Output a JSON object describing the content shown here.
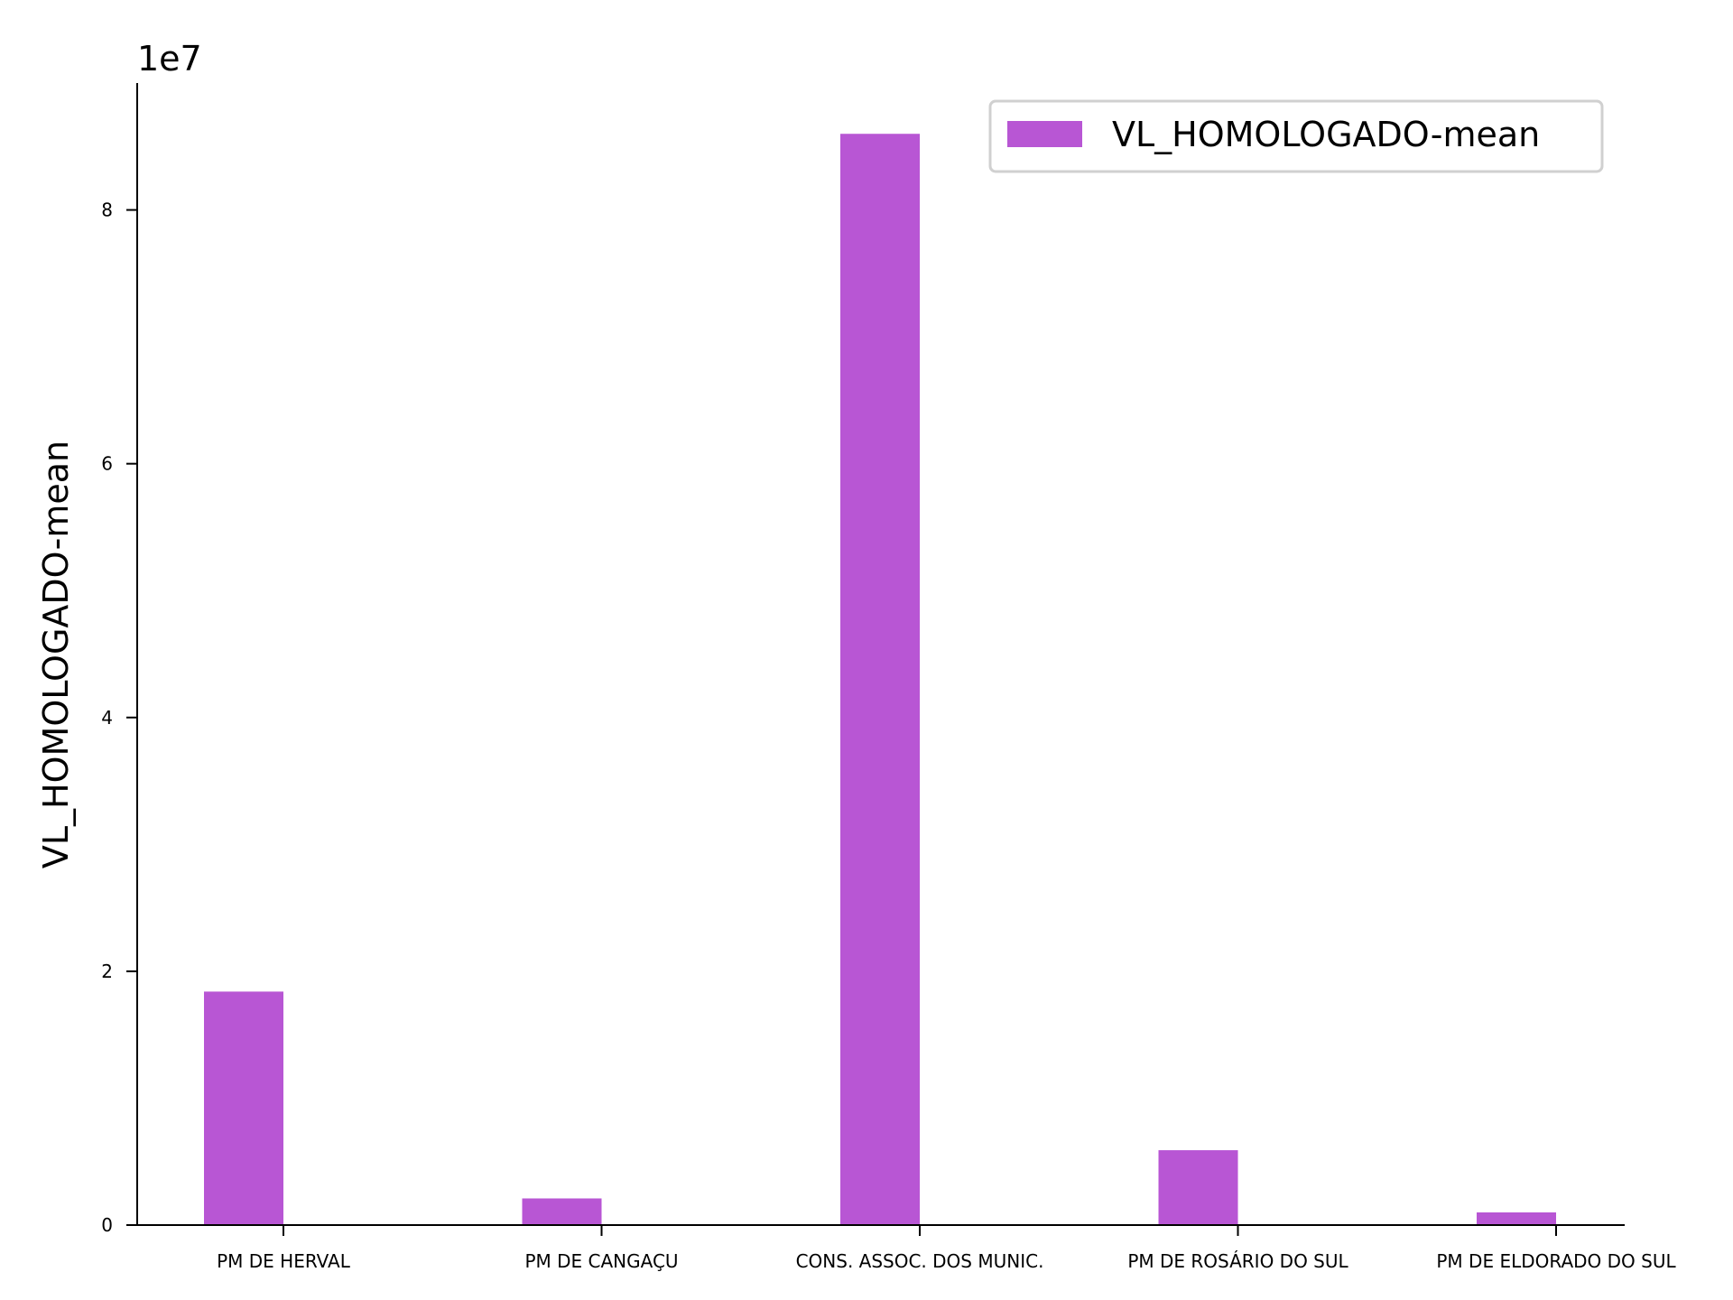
{
  "chart_data": {
    "type": "bar",
    "categories": [
      "PM DE HERVAL",
      "PM DE CANGAÇU",
      "CONS. ASSOC. DOS MUNIC.",
      "PM DE ROSÁRIO DO SUL",
      "PM DE ELDORADO DO SUL"
    ],
    "series": [
      {
        "name": "VL_HOMOLOGADO-mean",
        "values": [
          18400000,
          2100000,
          86000000,
          5900000,
          1000000
        ],
        "color": "#b856d4"
      }
    ],
    "title": "",
    "xlabel": "",
    "ylabel": "VL_HOMOLOGADO-mean",
    "y_offset_label": "1e7",
    "ylim": [
      0,
      90000000
    ],
    "yticks": [
      0,
      20000000,
      40000000,
      60000000,
      80000000
    ],
    "ytick_labels": [
      "0",
      "2",
      "4",
      "6",
      "8"
    ],
    "grid": false,
    "legend_position": "top-right"
  }
}
